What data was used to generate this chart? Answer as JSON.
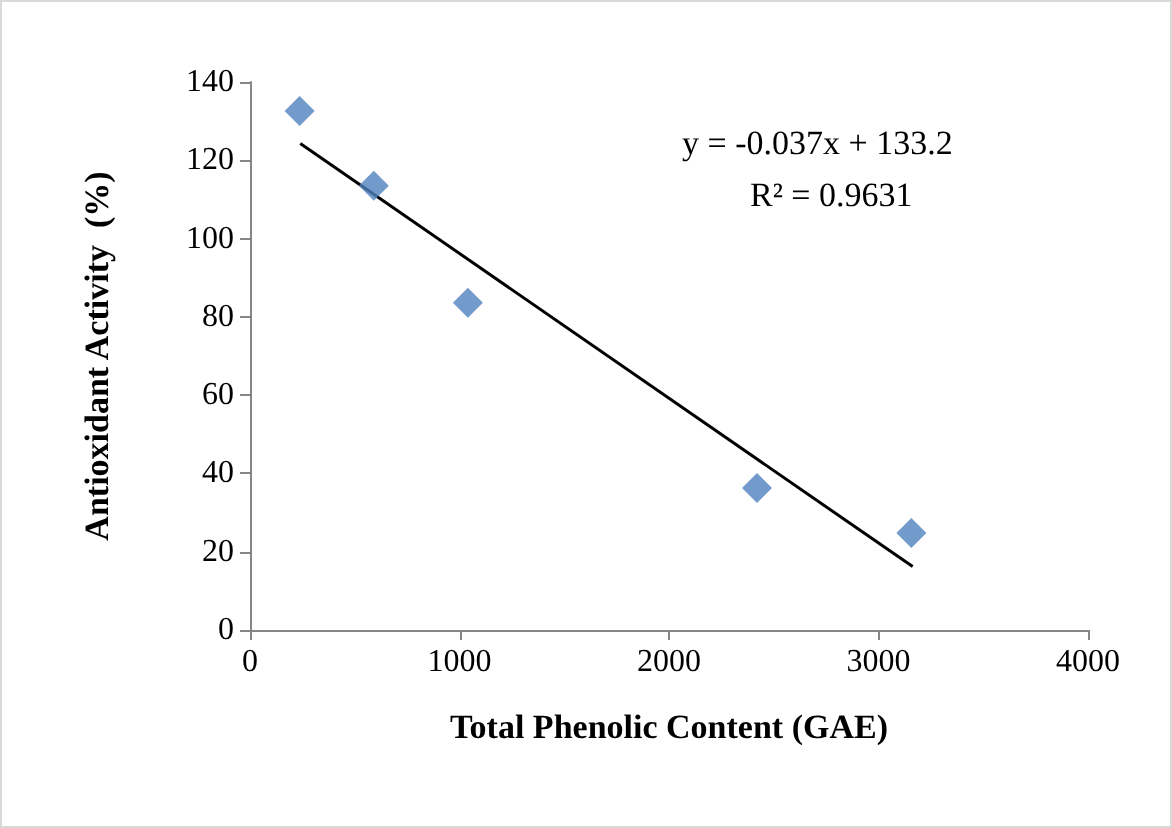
{
  "chart_data": {
    "type": "scatter",
    "xlabel": "Total Phenolic Content (GAE)",
    "ylabel": "Antioxidant Activity  (%)",
    "series": [
      {
        "color": "#4f81bd",
        "marker": "diamond",
        "x": [
          237,
          591,
          1040,
          2420,
          3157
        ],
        "values": [
          132.6,
          113.5,
          83.6,
          36.3,
          24.8
        ]
      },
      {
        "type": "line",
        "color": "#000000",
        "marker": "none",
        "line_style": "solid",
        "x": [
          240,
          3163
        ],
        "values": [
          124.3,
          16.2
        ]
      }
    ],
    "annotations": [
      "y = -0.037x + 133.2",
      "R² = 0.9631"
    ],
    "xlim": [
      0,
      4000
    ],
    "xticks": [
      0,
      1000,
      2000,
      3000,
      4000
    ],
    "ylim": [
      0,
      140
    ],
    "yticks": [
      0,
      20,
      40,
      60,
      80,
      100,
      120,
      140
    ],
    "grid": false
  }
}
